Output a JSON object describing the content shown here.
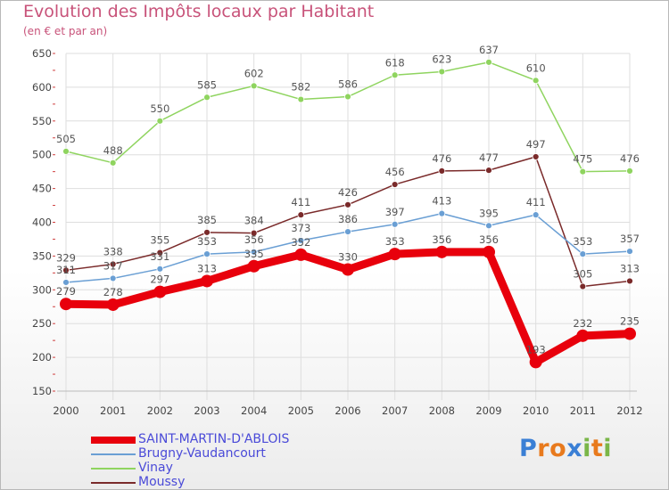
{
  "title": "Evolution des Impôts locaux par Habitant",
  "subtitle": "(en € et par an)",
  "logo": {
    "text": "Proxiti",
    "letters": [
      "P",
      "r",
      "o",
      "x",
      "i",
      "t",
      "i"
    ],
    "colors": [
      "#3a7fd5",
      "#e87a1d",
      "#e87a1d",
      "#3a7fd5",
      "#7ab648",
      "#e87a1d",
      "#7ab648"
    ]
  },
  "chart_data": {
    "type": "line",
    "categories": [
      "2000",
      "2001",
      "2002",
      "2003",
      "2004",
      "2005",
      "2006",
      "2007",
      "2008",
      "2009",
      "2010",
      "2011",
      "2012"
    ],
    "ylim": [
      150,
      650
    ],
    "yticks": [
      150,
      200,
      250,
      300,
      350,
      400,
      450,
      500,
      550,
      600,
      650
    ],
    "grid": true,
    "legend_position": "bottom-left",
    "series": [
      {
        "name": "SAINT-MARTIN-D'ABLOIS",
        "color": "#e8000c",
        "values": [
          279,
          278,
          297,
          313,
          335,
          352,
          330,
          353,
          356,
          356,
          193,
          232,
          235
        ]
      },
      {
        "name": "Brugny-Vaudancourt",
        "color": "#6a9fd4",
        "values": [
          311,
          317,
          331,
          353,
          356,
          373,
          386,
          397,
          413,
          395,
          411,
          353,
          357
        ]
      },
      {
        "name": "Vinay",
        "color": "#8fd45f",
        "values": [
          505,
          488,
          550,
          585,
          602,
          582,
          586,
          618,
          623,
          637,
          610,
          475,
          476
        ]
      },
      {
        "name": "Moussy",
        "color": "#7a2a2a",
        "values": [
          329,
          338,
          355,
          385,
          384,
          411,
          426,
          456,
          476,
          477,
          497,
          305,
          313
        ]
      }
    ]
  }
}
